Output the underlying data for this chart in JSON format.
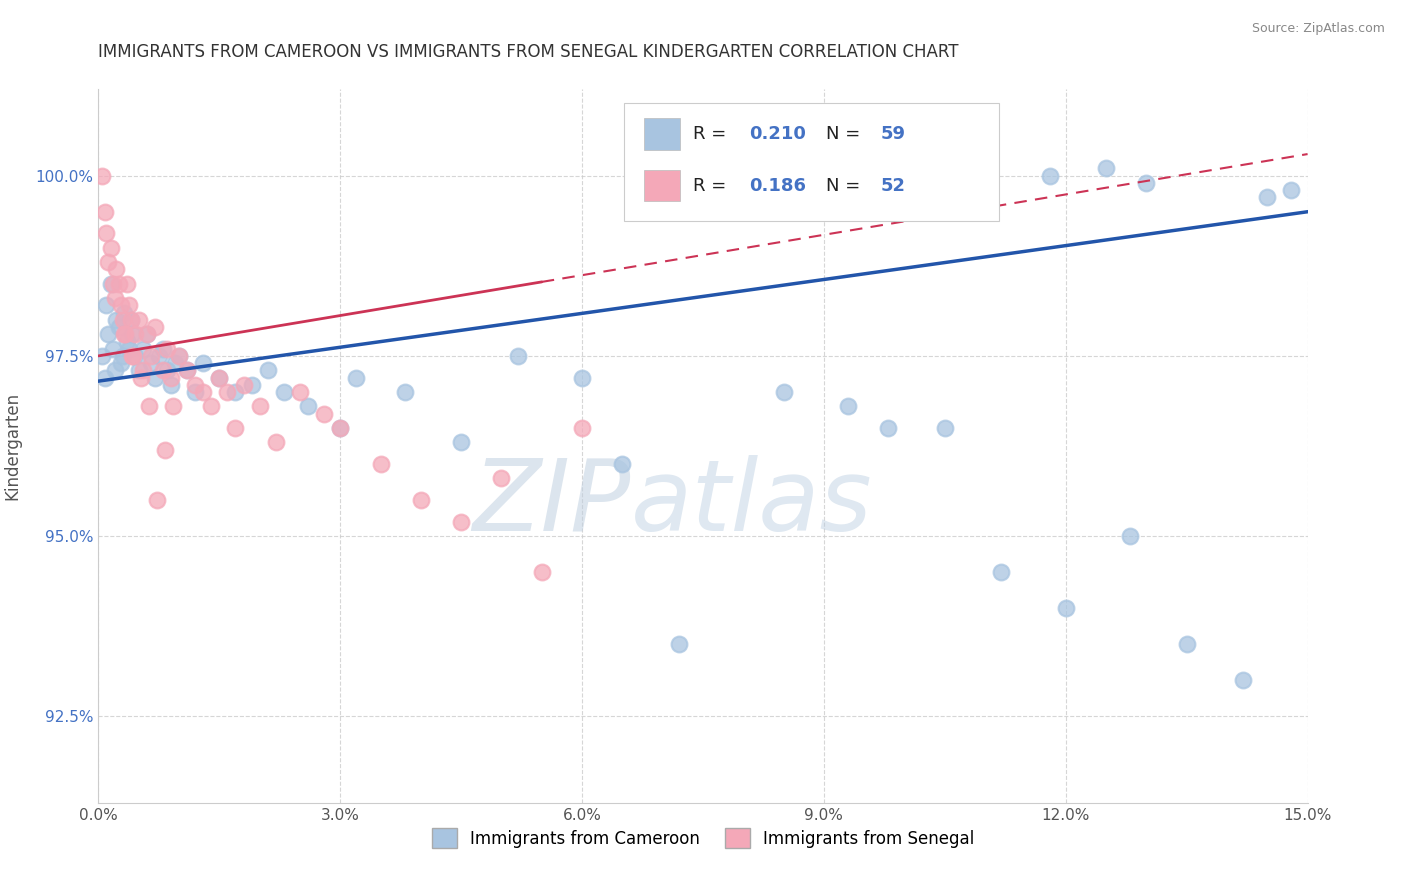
{
  "title": "IMMIGRANTS FROM CAMEROON VS IMMIGRANTS FROM SENEGAL KINDERGARTEN CORRELATION CHART",
  "source": "Source: ZipAtlas.com",
  "ylabel": "Kindergarten",
  "legend_label_blue": "Immigrants from Cameroon",
  "legend_label_pink": "Immigrants from Senegal",
  "R_blue": 0.21,
  "N_blue": 59,
  "R_pink": 0.186,
  "N_pink": 52,
  "xlim": [
    0.0,
    15.0
  ],
  "ylim": [
    91.3,
    101.2
  ],
  "yticks": [
    92.5,
    95.0,
    97.5,
    100.0
  ],
  "ytick_labels": [
    "92.5%",
    "95.0%",
    "97.5%",
    "100.0%"
  ],
  "xticks": [
    0.0,
    3.0,
    6.0,
    9.0,
    12.0,
    15.0
  ],
  "xtick_labels": [
    "0.0%",
    "3.0%",
    "6.0%",
    "9.0%",
    "12.0%",
    "15.0%"
  ],
  "color_blue": "#a8c4e0",
  "color_pink": "#f4a8b8",
  "trend_color_blue": "#2255aa",
  "trend_color_pink": "#cc3355",
  "background_color": "#ffffff",
  "watermark_text": "ZIPatlas",
  "watermark_color": "#c8d8ea",
  "blue_x": [
    0.05,
    0.08,
    0.1,
    0.12,
    0.15,
    0.18,
    0.2,
    0.22,
    0.25,
    0.28,
    0.3,
    0.32,
    0.35,
    0.38,
    0.4,
    0.42,
    0.45,
    0.5,
    0.55,
    0.6,
    0.65,
    0.7,
    0.75,
    0.8,
    0.85,
    0.9,
    0.95,
    1.0,
    1.1,
    1.2,
    1.3,
    1.5,
    1.7,
    1.9,
    2.1,
    2.3,
    2.6,
    3.0,
    3.2,
    3.8,
    4.5,
    5.2,
    6.0,
    6.5,
    7.2,
    8.5,
    9.3,
    10.5,
    11.2,
    12.0,
    12.8,
    13.5,
    14.2,
    14.8,
    9.8,
    11.8,
    12.5,
    13.0,
    14.5
  ],
  "blue_y": [
    97.5,
    97.2,
    98.2,
    97.8,
    98.5,
    97.6,
    97.3,
    98.0,
    97.9,
    97.4,
    97.5,
    98.1,
    97.7,
    97.6,
    98.0,
    97.8,
    97.5,
    97.3,
    97.6,
    97.8,
    97.4,
    97.2,
    97.5,
    97.6,
    97.3,
    97.1,
    97.4,
    97.5,
    97.3,
    97.0,
    97.4,
    97.2,
    97.0,
    97.1,
    97.3,
    97.0,
    96.8,
    96.5,
    97.2,
    97.0,
    96.3,
    97.5,
    97.2,
    96.0,
    93.5,
    97.0,
    96.8,
    96.5,
    94.5,
    94.0,
    95.0,
    93.5,
    93.0,
    99.8,
    96.5,
    100.0,
    100.1,
    99.9,
    99.7
  ],
  "pink_x": [
    0.05,
    0.08,
    0.1,
    0.12,
    0.15,
    0.18,
    0.2,
    0.22,
    0.25,
    0.28,
    0.3,
    0.32,
    0.35,
    0.38,
    0.4,
    0.42,
    0.45,
    0.5,
    0.55,
    0.6,
    0.65,
    0.7,
    0.8,
    0.85,
    0.9,
    1.0,
    1.1,
    1.2,
    1.3,
    1.4,
    1.5,
    1.6,
    1.7,
    1.8,
    2.0,
    2.2,
    2.5,
    2.8,
    3.0,
    3.5,
    4.0,
    4.5,
    5.0,
    5.5,
    6.0,
    0.33,
    0.43,
    0.53,
    0.63,
    0.73,
    0.83,
    0.93
  ],
  "pink_y": [
    100.0,
    99.5,
    99.2,
    98.8,
    99.0,
    98.5,
    98.3,
    98.7,
    98.5,
    98.2,
    98.0,
    97.8,
    98.5,
    98.2,
    98.0,
    97.5,
    97.8,
    98.0,
    97.3,
    97.8,
    97.5,
    97.9,
    97.3,
    97.6,
    97.2,
    97.5,
    97.3,
    97.1,
    97.0,
    96.8,
    97.2,
    97.0,
    96.5,
    97.1,
    96.8,
    96.3,
    97.0,
    96.7,
    96.5,
    96.0,
    95.5,
    95.2,
    95.8,
    94.5,
    96.5,
    97.8,
    97.5,
    97.2,
    96.8,
    95.5,
    96.2,
    96.8
  ]
}
